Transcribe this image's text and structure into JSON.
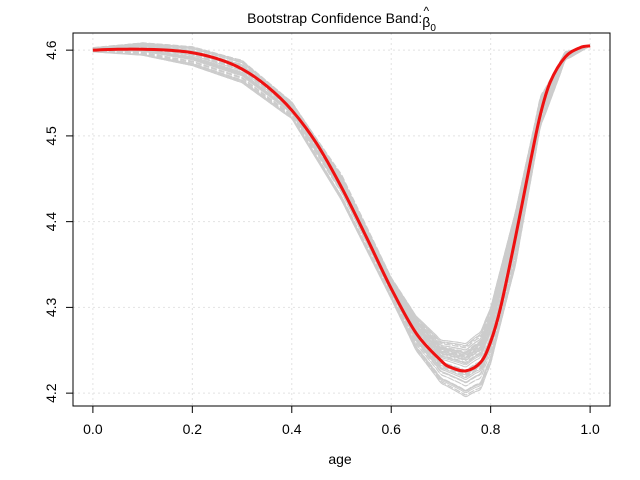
{
  "chart_data": {
    "type": "line",
    "title": "Bootstrap Confidence Band: β̂₀",
    "title_text": "Bootstrap Confidence Band: ",
    "title_symbol": "β",
    "title_hat": "^",
    "title_subscript": "0",
    "xlabel": "age",
    "ylabel": "",
    "xlim": [
      -0.04,
      1.04
    ],
    "ylim": [
      4.185,
      4.62
    ],
    "x_ticks": [
      0.0,
      0.2,
      0.4,
      0.6,
      0.8,
      1.0
    ],
    "x_tick_labels": [
      "0.0",
      "0.2",
      "0.4",
      "0.6",
      "0.8",
      "1.0"
    ],
    "y_ticks": [
      4.2,
      4.3,
      4.4,
      4.5,
      4.6
    ],
    "y_tick_labels": [
      "4.2",
      "4.3",
      "4.4",
      "4.5",
      "4.6"
    ],
    "grid": true,
    "legend": "none",
    "series": [
      {
        "role": "estimate",
        "color": "#ee1111",
        "x": [
          0.0,
          0.05,
          0.1,
          0.15,
          0.2,
          0.25,
          0.3,
          0.35,
          0.4,
          0.45,
          0.5,
          0.55,
          0.6,
          0.65,
          0.7,
          0.72,
          0.75,
          0.78,
          0.8,
          0.82,
          0.85,
          0.88,
          0.9,
          0.92,
          0.95,
          0.98,
          1.0
        ],
        "y": [
          4.6,
          4.601,
          4.601,
          4.6,
          4.597,
          4.59,
          4.578,
          4.558,
          4.53,
          4.491,
          4.44,
          4.382,
          4.322,
          4.27,
          4.238,
          4.23,
          4.226,
          4.236,
          4.26,
          4.3,
          4.382,
          4.47,
          4.525,
          4.563,
          4.592,
          4.603,
          4.605
        ]
      },
      {
        "role": "bootstrap-lower",
        "color": "#cccccc",
        "x": [
          0.0,
          0.1,
          0.2,
          0.3,
          0.4,
          0.5,
          0.6,
          0.65,
          0.7,
          0.75,
          0.78,
          0.8,
          0.85,
          0.9,
          0.95,
          1.0
        ],
        "y": [
          4.598,
          4.594,
          4.582,
          4.562,
          4.52,
          4.425,
          4.31,
          4.25,
          4.212,
          4.196,
          4.205,
          4.235,
          4.35,
          4.51,
          4.588,
          4.605
        ]
      },
      {
        "role": "bootstrap-upper",
        "color": "#cccccc",
        "x": [
          0.0,
          0.1,
          0.2,
          0.3,
          0.4,
          0.5,
          0.6,
          0.65,
          0.7,
          0.75,
          0.78,
          0.8,
          0.85,
          0.9,
          0.95,
          1.0
        ],
        "y": [
          4.603,
          4.609,
          4.604,
          4.588,
          4.54,
          4.455,
          4.335,
          4.29,
          4.262,
          4.258,
          4.272,
          4.3,
          4.412,
          4.545,
          4.598,
          4.605
        ]
      }
    ],
    "bootstrap_band": {
      "replicates": 60,
      "color": "#cccccc"
    }
  }
}
